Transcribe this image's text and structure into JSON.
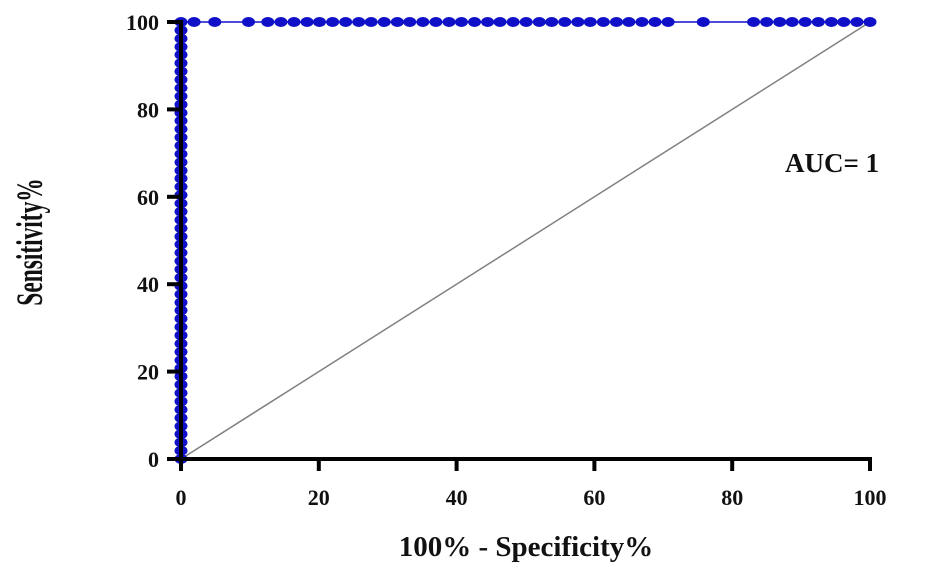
{
  "chart_data": {
    "type": "line",
    "title": "",
    "xlabel": "100% - Specificity%",
    "ylabel": "Sensitivity%",
    "xlim": [
      0,
      100
    ],
    "ylim": [
      0,
      100
    ],
    "xticks": [
      "0",
      "20",
      "40",
      "60",
      "80",
      "100"
    ],
    "yticks": [
      "0",
      "20",
      "40",
      "60",
      "80",
      "100"
    ],
    "grid": false,
    "annotation": "AUC= 1",
    "series": [
      {
        "color": "#1010c8",
        "x": [
          0,
          0,
          0,
          0,
          0,
          0,
          0,
          0,
          0,
          0,
          0,
          0,
          0,
          0,
          0,
          0,
          0,
          0,
          0,
          0,
          0,
          0,
          0,
          0,
          0,
          0,
          0,
          0,
          0,
          0,
          0,
          0,
          0,
          0,
          0,
          0,
          0,
          0,
          0,
          0,
          0,
          0,
          0,
          0,
          0,
          0,
          0,
          0,
          0,
          0,
          0,
          0,
          0,
          0,
          1.9,
          4.9,
          9.8,
          12.6,
          14.5,
          16.4,
          18.3,
          20.1,
          22.0,
          23.9,
          25.8,
          27.6,
          29.5,
          31.4,
          33.2,
          35.1,
          37.0,
          38.9,
          40.7,
          42.6,
          44.5,
          46.3,
          48.2,
          50.1,
          52.0,
          53.8,
          55.7,
          57.6,
          59.4,
          61.3,
          63.2,
          65.0,
          66.9,
          68.8,
          70.7,
          75.8,
          83.1,
          85.0,
          86.9,
          88.7,
          90.6,
          92.5,
          94.4,
          96.2,
          98.1,
          100
        ],
        "y": [
          0,
          1.9,
          3.8,
          5.7,
          7.5,
          9.4,
          11.3,
          13.2,
          15.1,
          17.0,
          18.9,
          20.8,
          22.6,
          24.5,
          26.4,
          28.3,
          30.2,
          32.1,
          34.0,
          35.8,
          37.7,
          39.6,
          41.5,
          43.4,
          45.3,
          47.2,
          49.1,
          50.9,
          52.8,
          54.7,
          56.6,
          58.5,
          60.4,
          62.3,
          64.2,
          66.0,
          67.9,
          69.8,
          71.7,
          73.6,
          75.5,
          77.4,
          79.2,
          81.1,
          83.0,
          84.9,
          86.8,
          88.7,
          90.6,
          92.5,
          94.3,
          96.2,
          98.1,
          100,
          100,
          100,
          100,
          100,
          100,
          100,
          100,
          100,
          100,
          100,
          100,
          100,
          100,
          100,
          100,
          100,
          100,
          100,
          100,
          100,
          100,
          100,
          100,
          100,
          100,
          100,
          100,
          100,
          100,
          100,
          100,
          100,
          100,
          100,
          100,
          100,
          100,
          100,
          100,
          100,
          100,
          100,
          100,
          100,
          100,
          100
        ]
      },
      {
        "color": "#808080",
        "x": [
          0,
          100
        ],
        "y": [
          0,
          100
        ]
      }
    ]
  }
}
